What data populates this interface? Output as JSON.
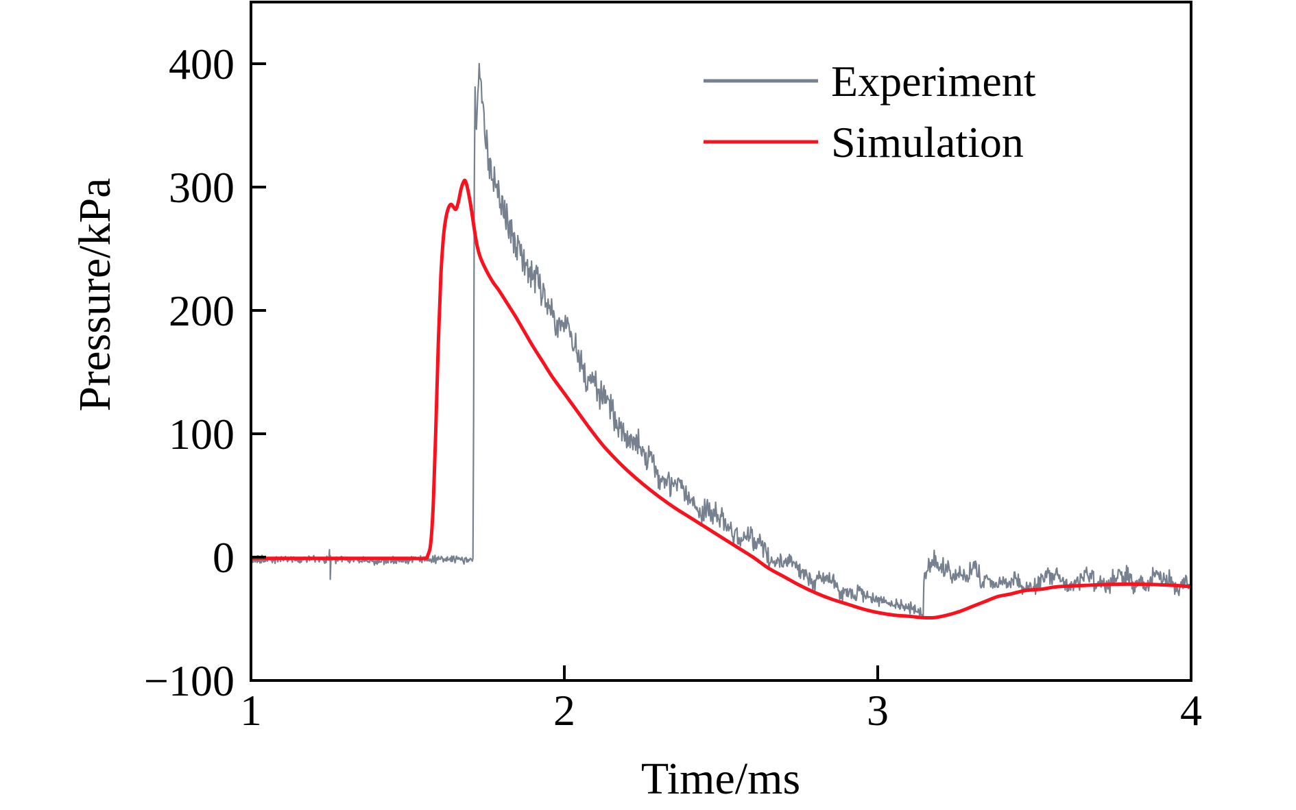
{
  "figure": {
    "background": "#ffffff",
    "frame_color": "#000000"
  },
  "chart_data": {
    "type": "line",
    "title": "",
    "xlabel": "Time/ms",
    "ylabel": "Pressure/kPa",
    "xlim": [
      1,
      4
    ],
    "ylim": [
      -100,
      450
    ],
    "xticks": [
      1,
      2,
      3,
      4
    ],
    "yticks": [
      -100,
      0,
      100,
      200,
      300,
      400
    ],
    "grid": false,
    "legend": {
      "position": "upper-right",
      "entries": [
        "Experiment",
        "Simulation"
      ]
    },
    "series": [
      {
        "name": "Experiment",
        "color": "#76808E",
        "style": "noisy",
        "line_width": 2.2,
        "seed": 1371,
        "anchors": [
          [
            1.0,
            -2
          ],
          [
            1.1,
            -2
          ],
          [
            1.2,
            -2
          ],
          [
            1.3,
            -2
          ],
          [
            1.4,
            -3
          ],
          [
            1.5,
            -2
          ],
          [
            1.6,
            -2
          ],
          [
            1.7,
            -2
          ],
          [
            1.709,
            -2
          ],
          [
            1.7115,
            180
          ],
          [
            1.7135,
            377
          ],
          [
            1.7155,
            381
          ],
          [
            1.718,
            352
          ],
          [
            1.7205,
            360
          ],
          [
            1.723,
            380
          ],
          [
            1.727,
            396
          ],
          [
            1.7315,
            392
          ],
          [
            1.7365,
            377
          ],
          [
            1.742,
            358
          ],
          [
            1.748,
            342
          ],
          [
            1.755,
            326
          ],
          [
            1.763,
            313
          ],
          [
            1.773,
            304
          ],
          [
            1.785,
            296
          ],
          [
            1.8,
            287
          ],
          [
            1.82,
            272
          ],
          [
            1.845,
            256
          ],
          [
            1.87,
            241
          ],
          [
            1.9,
            227
          ],
          [
            1.93,
            214
          ],
          [
            1.96,
            201
          ],
          [
            2.0,
            184
          ],
          [
            2.04,
            166
          ],
          [
            2.08,
            148
          ],
          [
            2.12,
            130
          ],
          [
            2.16,
            113
          ],
          [
            2.2,
            99
          ],
          [
            2.25,
            84
          ],
          [
            2.3,
            70
          ],
          [
            2.35,
            58
          ],
          [
            2.4,
            48
          ],
          [
            2.45,
            38
          ],
          [
            2.5,
            29
          ],
          [
            2.55,
            20
          ],
          [
            2.6,
            12
          ],
          [
            2.65,
            4
          ],
          [
            2.7,
            -4
          ],
          [
            2.75,
            -11
          ],
          [
            2.8,
            -17
          ],
          [
            2.85,
            -22
          ],
          [
            2.9,
            -27
          ],
          [
            2.95,
            -31
          ],
          [
            3.0,
            -34
          ],
          [
            3.05,
            -38
          ],
          [
            3.1,
            -41
          ],
          [
            3.14,
            -44
          ],
          [
            3.146,
            -44
          ],
          [
            3.148,
            2
          ],
          [
            3.152,
            -8
          ],
          [
            3.16,
            -7
          ],
          [
            3.18,
            -8
          ],
          [
            3.21,
            -10
          ],
          [
            3.24,
            -12
          ],
          [
            3.27,
            -13
          ],
          [
            3.3,
            -15
          ],
          [
            3.34,
            -18
          ],
          [
            3.38,
            -20
          ],
          [
            3.42,
            -22
          ],
          [
            3.47,
            -21
          ],
          [
            3.52,
            -19
          ],
          [
            3.57,
            -18
          ],
          [
            3.62,
            -19
          ],
          [
            3.67,
            -18
          ],
          [
            3.72,
            -17
          ],
          [
            3.77,
            -18
          ],
          [
            3.82,
            -19
          ],
          [
            3.87,
            -18
          ],
          [
            3.92,
            -19
          ],
          [
            3.97,
            -21
          ],
          [
            4.0,
            -22
          ]
        ],
        "noise_amplitude_anchors": [
          [
            1.0,
            4
          ],
          [
            1.6,
            4
          ],
          [
            1.695,
            4
          ],
          [
            1.709,
            5
          ],
          [
            1.716,
            12
          ],
          [
            1.73,
            15
          ],
          [
            1.76,
            15
          ],
          [
            1.8,
            16
          ],
          [
            1.85,
            18
          ],
          [
            1.95,
            18
          ],
          [
            2.05,
            16
          ],
          [
            2.15,
            14
          ],
          [
            2.25,
            13
          ],
          [
            2.35,
            12
          ],
          [
            2.5,
            11
          ],
          [
            2.65,
            10
          ],
          [
            2.8,
            8
          ],
          [
            2.95,
            7
          ],
          [
            3.05,
            6
          ],
          [
            3.13,
            5
          ],
          [
            3.15,
            9
          ],
          [
            3.2,
            11
          ],
          [
            3.3,
            10
          ],
          [
            3.45,
            8
          ],
          [
            3.6,
            9
          ],
          [
            3.75,
            10
          ],
          [
            3.9,
            9
          ],
          [
            4.0,
            9
          ]
        ],
        "wander": {
          "amplitude": 6,
          "frequency": 8.5,
          "phase": 0.7,
          "threshold": 7
        },
        "spikes": [
          {
            "t": 1.2505,
            "v": 6
          },
          {
            "t": 1.253,
            "v": -18
          }
        ]
      },
      {
        "name": "Simulation",
        "color": "#F9121E",
        "style": "smooth",
        "line_width": 5,
        "anchors": [
          [
            1.0,
            -1
          ],
          [
            1.2,
            -1
          ],
          [
            1.4,
            -1
          ],
          [
            1.5,
            -1
          ],
          [
            1.555,
            -1
          ],
          [
            1.565,
            2
          ],
          [
            1.574,
            12
          ],
          [
            1.582,
            45
          ],
          [
            1.59,
            105
          ],
          [
            1.598,
            175
          ],
          [
            1.606,
            228
          ],
          [
            1.614,
            259
          ],
          [
            1.622,
            275
          ],
          [
            1.63,
            283
          ],
          [
            1.638,
            286
          ],
          [
            1.646,
            284
          ],
          [
            1.654,
            282
          ],
          [
            1.662,
            288
          ],
          [
            1.67,
            298
          ],
          [
            1.678,
            304
          ],
          [
            1.684,
            305
          ],
          [
            1.692,
            298
          ],
          [
            1.702,
            284
          ],
          [
            1.712,
            267
          ],
          [
            1.722,
            252
          ],
          [
            1.732,
            243
          ],
          [
            1.744,
            236
          ],
          [
            1.756,
            230
          ],
          [
            1.772,
            223
          ],
          [
            1.792,
            216
          ],
          [
            1.812,
            208
          ],
          [
            1.842,
            196
          ],
          [
            1.872,
            183
          ],
          [
            1.902,
            170
          ],
          [
            1.932,
            158
          ],
          [
            1.962,
            146
          ],
          [
            2.002,
            132
          ],
          [
            2.042,
            118
          ],
          [
            2.082,
            104
          ],
          [
            2.122,
            91
          ],
          [
            2.162,
            80
          ],
          [
            2.202,
            70
          ],
          [
            2.252,
            59
          ],
          [
            2.302,
            49
          ],
          [
            2.352,
            40
          ],
          [
            2.402,
            32
          ],
          [
            2.452,
            24
          ],
          [
            2.502,
            16
          ],
          [
            2.552,
            8
          ],
          [
            2.602,
            0
          ],
          [
            2.652,
            -9
          ],
          [
            2.702,
            -16
          ],
          [
            2.752,
            -23
          ],
          [
            2.802,
            -29
          ],
          [
            2.852,
            -34
          ],
          [
            2.902,
            -38
          ],
          [
            2.952,
            -42
          ],
          [
            3.002,
            -45
          ],
          [
            3.052,
            -47
          ],
          [
            3.102,
            -48
          ],
          [
            3.142,
            -49
          ],
          [
            3.182,
            -49
          ],
          [
            3.222,
            -47
          ],
          [
            3.262,
            -44
          ],
          [
            3.302,
            -40
          ],
          [
            3.342,
            -36
          ],
          [
            3.382,
            -32
          ],
          [
            3.422,
            -30
          ],
          [
            3.472,
            -27
          ],
          [
            3.522,
            -26
          ],
          [
            3.572,
            -24
          ],
          [
            3.652,
            -23
          ],
          [
            3.752,
            -22
          ],
          [
            3.852,
            -22
          ],
          [
            3.952,
            -23
          ],
          [
            4.0,
            -24
          ]
        ]
      }
    ]
  }
}
